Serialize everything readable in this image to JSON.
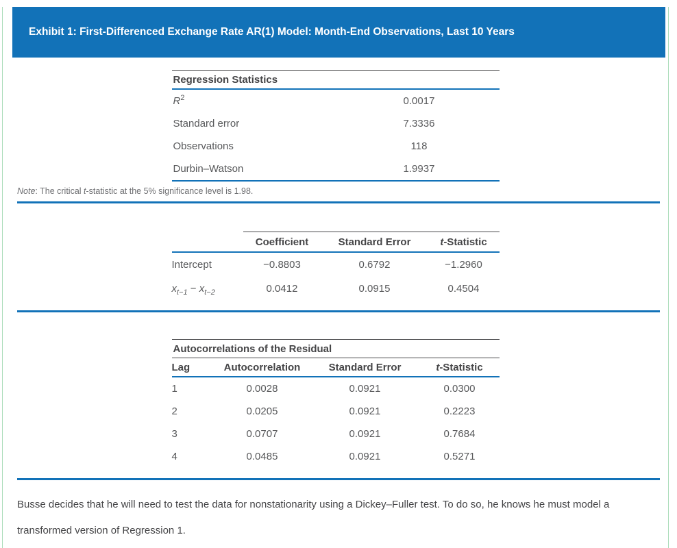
{
  "exhibit": {
    "title": "Exhibit 1: First-Differenced Exchange Rate AR(1) Model: Month-End Observations, Last 10 Years"
  },
  "regression_stats": {
    "title": "Regression Statistics",
    "rows": [
      {
        "label": "R",
        "label_sup": "2",
        "value": "0.0017"
      },
      {
        "label": "Standard error",
        "value": "7.3336"
      },
      {
        "label": "Observations",
        "value": "118"
      },
      {
        "label": "Durbin–Watson",
        "value": "1.9937"
      }
    ]
  },
  "note": {
    "word": "Note",
    "mid": ": The critical ",
    "t": "t",
    "rest": "-statistic at the 5% significance level is 1.98."
  },
  "coefficients": {
    "headers": {
      "coefficient": "Coefficient",
      "standard_error": "Standard Error",
      "t_prefix": "t",
      "t_suffix": "-Statistic"
    },
    "rows": [
      {
        "label": "Intercept",
        "coefficient": "−0.8803",
        "standard_error": "0.6792",
        "t_statistic": "−1.2960"
      },
      {
        "label_parts": {
          "v1": "x",
          "s1": "t−1",
          "op": " − ",
          "v2": "x",
          "s2": "t−2"
        },
        "coefficient": "0.0412",
        "standard_error": "0.0915",
        "t_statistic": "0.4504"
      }
    ]
  },
  "autocorrelations": {
    "title": "Autocorrelations of the Residual",
    "headers": {
      "lag": "Lag",
      "autocorrelation": "Autocorrelation",
      "standard_error": "Standard Error",
      "t_prefix": "t",
      "t_suffix": "-Statistic"
    },
    "rows": [
      {
        "lag": "1",
        "autocorrelation": "0.0028",
        "standard_error": "0.0921",
        "t_statistic": "0.0300"
      },
      {
        "lag": "2",
        "autocorrelation": "0.0205",
        "standard_error": "0.0921",
        "t_statistic": "0.2223"
      },
      {
        "lag": "3",
        "autocorrelation": "0.0707",
        "standard_error": "0.0921",
        "t_statistic": "0.7684"
      },
      {
        "lag": "4",
        "autocorrelation": "0.0485",
        "standard_error": "0.0921",
        "t_statistic": "0.5271"
      }
    ]
  },
  "closing_paragraph": "Busse decides that he will need to test the data for nonstationarity using a Dickey–Fuller test. To do so, he knows he must model a transformed version of Regression 1.",
  "colors": {
    "accent_blue": "#1272b8",
    "border_green": "#a9dcb8",
    "rule_dark": "#454547"
  }
}
